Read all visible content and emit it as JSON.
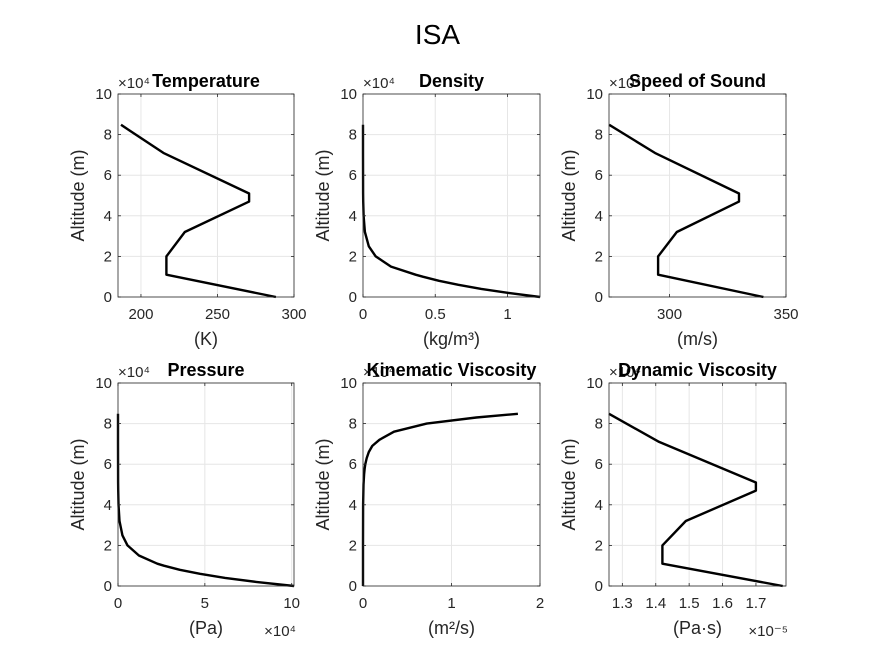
{
  "figure": {
    "title": "ISA"
  },
  "chart_data": [
    {
      "type": "line",
      "title": "Temperature",
      "xlabel": "(K)",
      "ylabel": "Altitude (m)",
      "xlim": [
        185,
        300
      ],
      "ylim": [
        0,
        100000
      ],
      "xticks": [
        200,
        250,
        300
      ],
      "xtick_labels": [
        "200",
        "250",
        "300"
      ],
      "yticks": [
        0,
        20000,
        40000,
        60000,
        80000,
        100000
      ],
      "ytick_labels": [
        "0",
        "2",
        "4",
        "6",
        "8",
        "10"
      ],
      "y_exponent": "×10⁴",
      "x_exponent": "",
      "grid": true,
      "x": [
        288.15,
        216.65,
        216.65,
        228.65,
        270.65,
        270.65,
        214.65,
        186.95
      ],
      "y": [
        0,
        11000,
        20000,
        32000,
        47000,
        51000,
        71000,
        84852
      ]
    },
    {
      "type": "line",
      "title": "Density",
      "xlabel": "(kg/m³)",
      "ylabel": "Altitude (m)",
      "xlim": [
        0,
        1.225
      ],
      "ylim": [
        0,
        100000
      ],
      "xticks": [
        0,
        0.5,
        1
      ],
      "xtick_labels": [
        "0",
        "0.5",
        "1"
      ],
      "yticks": [
        0,
        20000,
        40000,
        60000,
        80000,
        100000
      ],
      "ytick_labels": [
        "0",
        "2",
        "4",
        "6",
        "8",
        "10"
      ],
      "y_exponent": "×10⁴",
      "x_exponent": "",
      "grid": true,
      "x": [
        1.225,
        1.007,
        0.819,
        0.66,
        0.526,
        0.414,
        0.364,
        0.194,
        0.088,
        0.04,
        0.0132,
        0.00386,
        0.00143,
        0.00086,
        6.4e-05,
        6.8e-06
      ],
      "y": [
        0,
        2000,
        4000,
        6000,
        8000,
        10000,
        11000,
        15000,
        20000,
        25000,
        32000,
        40000,
        47000,
        51000,
        71000,
        84852
      ]
    },
    {
      "type": "line",
      "title": "Speed of Sound",
      "xlabel": "(m/s)",
      "ylabel": "Altitude (m)",
      "xlim": [
        274,
        350
      ],
      "ylim": [
        0,
        100000
      ],
      "xticks": [
        300,
        350
      ],
      "xtick_labels": [
        "300",
        "350"
      ],
      "yticks": [
        0,
        20000,
        40000,
        60000,
        80000,
        100000
      ],
      "ytick_labels": [
        "0",
        "2",
        "4",
        "6",
        "8",
        "10"
      ],
      "y_exponent": "×10⁴",
      "x_exponent": "",
      "grid": true,
      "x": [
        340.3,
        295.1,
        295.1,
        303.1,
        329.8,
        329.8,
        293.7,
        274.1
      ],
      "y": [
        0,
        11000,
        20000,
        32000,
        47000,
        51000,
        71000,
        84852
      ]
    },
    {
      "type": "line",
      "title": "Pressure",
      "xlabel": "(Pa)",
      "ylabel": "Altitude (m)",
      "xlim": [
        0,
        101325
      ],
      "ylim": [
        0,
        100000
      ],
      "xticks": [
        0,
        50000,
        100000
      ],
      "xtick_labels": [
        "0",
        "5",
        "10"
      ],
      "yticks": [
        0,
        20000,
        40000,
        60000,
        80000,
        100000
      ],
      "ytick_labels": [
        "0",
        "2",
        "4",
        "6",
        "8",
        "10"
      ],
      "y_exponent": "×10⁴",
      "x_exponent": "×10⁴",
      "grid": true,
      "x": [
        101325,
        79495,
        61640,
        47181,
        35599,
        26436,
        22632,
        12045,
        5475,
        2511,
        868,
        278,
        111,
        67,
        4,
        0.37
      ],
      "y": [
        0,
        2000,
        4000,
        6000,
        8000,
        10000,
        11000,
        15000,
        20000,
        25000,
        32000,
        40000,
        47000,
        51000,
        71000,
        84852
      ]
    },
    {
      "type": "line",
      "title": "Kinematic Viscosity",
      "xlabel": "(m²/s)",
      "ylabel": "Altitude (m)",
      "xlim": [
        0,
        2
      ],
      "ylim": [
        0,
        100000
      ],
      "xticks": [
        0,
        1,
        2
      ],
      "xtick_labels": [
        "0",
        "1",
        "2"
      ],
      "yticks": [
        0,
        20000,
        40000,
        60000,
        80000,
        100000
      ],
      "ytick_labels": [
        "0",
        "2",
        "4",
        "6",
        "8",
        "10"
      ],
      "y_exponent": "×10⁴",
      "x_exponent": "",
      "grid": true,
      "x": [
        1.46e-05,
        0.00016,
        0.0013,
        0.0056,
        0.0119,
        0.0193,
        0.0259,
        0.0416,
        0.0658,
        0.105,
        0.185,
        0.35,
        0.72,
        1.28,
        1.75
      ],
      "y": [
        0,
        20000,
        40000,
        50000,
        55000,
        58000,
        60000,
        63000,
        66000,
        69000,
        72000,
        76000,
        80000,
        83000,
        84852
      ]
    },
    {
      "type": "line",
      "title": "Dynamic Viscosity",
      "xlabel": "(Pa·s)",
      "ylabel": "Altitude (m)",
      "xlim": [
        1.26e-05,
        1.79e-05
      ],
      "ylim": [
        0,
        100000
      ],
      "xticks": [
        1.3e-05,
        1.4e-05,
        1.5e-05,
        1.6e-05,
        1.7e-05
      ],
      "xtick_labels": [
        "1.3",
        "1.4",
        "1.5",
        "1.6",
        "1.7"
      ],
      "yticks": [
        0,
        20000,
        40000,
        60000,
        80000,
        100000
      ],
      "ytick_labels": [
        "0",
        "2",
        "4",
        "6",
        "8",
        "10"
      ],
      "y_exponent": "×10⁴",
      "x_exponent": "×10⁻⁵",
      "grid": true,
      "x": [
        1.78e-05,
        1.42e-05,
        1.42e-05,
        1.49e-05,
        1.7e-05,
        1.7e-05,
        1.41e-05,
        1.26e-05
      ],
      "y": [
        0,
        11000,
        20000,
        32000,
        47000,
        51000,
        71000,
        84852
      ]
    }
  ],
  "colors": {
    "line": "#000000",
    "grid": "#e6e6e6",
    "axes": "#262626",
    "text": "#262626"
  }
}
